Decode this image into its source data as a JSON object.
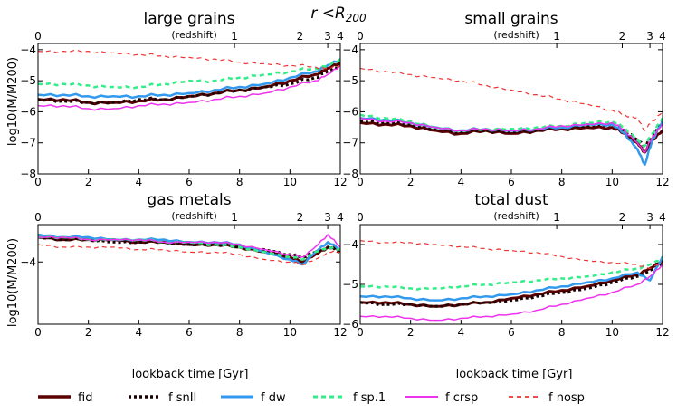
{
  "figure": {
    "title_main": "r <R",
    "title_sub": "200"
  },
  "chart_data": [
    {
      "type": "line",
      "title": "large grains",
      "xlabel": "",
      "ylabel": "log10(M/M200)",
      "xlim": [
        0,
        12
      ],
      "ylim": [
        -8,
        -3.8
      ],
      "xticks": [
        "0",
        "2",
        "4",
        "6",
        "8",
        "10",
        "12"
      ],
      "yticks": [
        "-8",
        "-7",
        "-6",
        "-5",
        "-4"
      ],
      "top_axis_label": "(redshift)",
      "top_ticks": [
        {
          "label": "0",
          "t": 0
        },
        {
          "label": "1",
          "t": 7.8
        },
        {
          "label": "2",
          "t": 10.4
        },
        {
          "label": "3",
          "t": 11.5
        },
        {
          "label": "4",
          "t": 12.0
        }
      ],
      "series": [
        {
          "name": "fid",
          "x": [
            0,
            1,
            2,
            3,
            4,
            5,
            6,
            7,
            8,
            9,
            10,
            11,
            11.5,
            12
          ],
          "y": [
            -5.6,
            -5.6,
            -5.7,
            -5.7,
            -5.65,
            -5.6,
            -5.5,
            -5.4,
            -5.3,
            -5.2,
            -5.0,
            -4.8,
            -4.6,
            -4.4
          ]
        },
        {
          "name": "f snII",
          "x": [
            0,
            1,
            2,
            3,
            4,
            5,
            6,
            7,
            8,
            9,
            10,
            11,
            11.5,
            12
          ],
          "y": [
            -5.6,
            -5.65,
            -5.7,
            -5.7,
            -5.6,
            -5.6,
            -5.5,
            -5.4,
            -5.3,
            -5.2,
            -5.1,
            -4.9,
            -4.7,
            -4.5
          ]
        },
        {
          "name": "f dw",
          "x": [
            0,
            1,
            2,
            3,
            4,
            5,
            6,
            7,
            8,
            9,
            10,
            11,
            11.5,
            12
          ],
          "y": [
            -5.45,
            -5.45,
            -5.5,
            -5.5,
            -5.5,
            -5.45,
            -5.4,
            -5.3,
            -5.2,
            -5.1,
            -4.9,
            -4.7,
            -4.5,
            -4.3
          ]
        },
        {
          "name": "f sp.1",
          "x": [
            0,
            1,
            2,
            3,
            4,
            5,
            6,
            7,
            8,
            9,
            10,
            11,
            11.5,
            12
          ],
          "y": [
            -5.1,
            -5.1,
            -5.15,
            -5.2,
            -5.2,
            -5.1,
            -5.0,
            -5.0,
            -4.9,
            -4.8,
            -4.7,
            -4.6,
            -4.5,
            -4.3
          ]
        },
        {
          "name": "f crsp",
          "x": [
            0,
            1,
            2,
            3,
            4,
            5,
            6,
            7,
            8,
            9,
            10,
            11,
            11.5,
            12
          ],
          "y": [
            -5.8,
            -5.8,
            -5.9,
            -5.9,
            -5.8,
            -5.75,
            -5.7,
            -5.6,
            -5.5,
            -5.4,
            -5.2,
            -5.0,
            -4.8,
            -4.5
          ]
        },
        {
          "name": "f nosp",
          "x": [
            0,
            1,
            2,
            3,
            4,
            5,
            6,
            7,
            8,
            9,
            10,
            11,
            11.5,
            12
          ],
          "y": [
            -4.05,
            -4.05,
            -4.05,
            -4.1,
            -4.15,
            -4.2,
            -4.25,
            -4.3,
            -4.4,
            -4.45,
            -4.5,
            -4.55,
            -4.6,
            -4.5
          ]
        }
      ]
    },
    {
      "type": "line",
      "title": "small grains",
      "xlabel": "",
      "ylabel": "",
      "xlim": [
        0,
        12
      ],
      "ylim": [
        -8,
        -3.8
      ],
      "xticks": [
        "0",
        "2",
        "4",
        "6",
        "8",
        "10",
        "12"
      ],
      "yticks": [
        "-8",
        "-7",
        "-6",
        "-5",
        "-4"
      ],
      "top_axis_label": "(redshift)",
      "top_ticks": [
        {
          "label": "0",
          "t": 0
        },
        {
          "label": "1",
          "t": 7.8
        },
        {
          "label": "2",
          "t": 10.4
        },
        {
          "label": "3",
          "t": 11.5
        },
        {
          "label": "4",
          "t": 12.0
        }
      ],
      "series": [
        {
          "name": "fid",
          "x": [
            0,
            1,
            2,
            3,
            4,
            5,
            6,
            7,
            8,
            9,
            10,
            10.5,
            11,
            11.3,
            11.6,
            12
          ],
          "y": [
            -6.35,
            -6.4,
            -6.45,
            -6.6,
            -6.7,
            -6.6,
            -6.7,
            -6.6,
            -6.55,
            -6.5,
            -6.5,
            -6.7,
            -7.0,
            -7.3,
            -6.9,
            -6.6
          ]
        },
        {
          "name": "f snII",
          "x": [
            0,
            1,
            2,
            3,
            4,
            5,
            6,
            7,
            8,
            9,
            10,
            10.5,
            11,
            11.3,
            11.6,
            12
          ],
          "y": [
            -6.3,
            -6.35,
            -6.4,
            -6.55,
            -6.65,
            -6.6,
            -6.65,
            -6.6,
            -6.5,
            -6.45,
            -6.4,
            -6.6,
            -6.9,
            -7.1,
            -6.8,
            -6.3
          ]
        },
        {
          "name": "f dw",
          "x": [
            0,
            1,
            2,
            3,
            4,
            5,
            6,
            7,
            8,
            9,
            10,
            10.5,
            11,
            11.3,
            11.6,
            12
          ],
          "y": [
            -6.2,
            -6.25,
            -6.35,
            -6.5,
            -6.6,
            -6.55,
            -6.6,
            -6.55,
            -6.5,
            -6.4,
            -6.4,
            -6.7,
            -7.2,
            -7.7,
            -6.9,
            -6.3
          ]
        },
        {
          "name": "f sp.1",
          "x": [
            0,
            1,
            2,
            3,
            4,
            5,
            6,
            7,
            8,
            9,
            10,
            10.5,
            11,
            11.3,
            11.6,
            12
          ],
          "y": [
            -6.1,
            -6.2,
            -6.3,
            -6.5,
            -6.6,
            -6.55,
            -6.55,
            -6.5,
            -6.45,
            -6.35,
            -6.3,
            -6.5,
            -6.9,
            -7.1,
            -6.7,
            -6.2
          ]
        },
        {
          "name": "f crsp",
          "x": [
            0,
            1,
            2,
            3,
            4,
            5,
            6,
            7,
            8,
            9,
            10,
            10.5,
            11,
            11.3,
            11.6,
            12
          ],
          "y": [
            -6.2,
            -6.3,
            -6.35,
            -6.5,
            -6.6,
            -6.55,
            -6.6,
            -6.55,
            -6.45,
            -6.4,
            -6.35,
            -6.6,
            -7.0,
            -7.3,
            -6.8,
            -6.4
          ]
        },
        {
          "name": "f nosp",
          "x": [
            0,
            1,
            2,
            3,
            4,
            5,
            6,
            7,
            8,
            9,
            10,
            10.5,
            11,
            11.3,
            11.6,
            12
          ],
          "y": [
            -4.6,
            -4.7,
            -4.8,
            -4.9,
            -5.0,
            -5.15,
            -5.3,
            -5.45,
            -5.6,
            -5.75,
            -5.95,
            -6.1,
            -6.2,
            -6.6,
            -6.3,
            -6.0
          ]
        }
      ]
    },
    {
      "type": "line",
      "title": "gas metals",
      "xlabel": "",
      "ylabel": "",
      "xlim": [
        0,
        12
      ],
      "ylim": [
        -5.25,
        -3.25
      ],
      "xticks": [
        "0",
        "2",
        "4",
        "6",
        "8",
        "10",
        "12"
      ],
      "yticks": [
        "-4"
      ],
      "top_axis_label": "(redshift)",
      "top_ticks": [
        {
          "label": "0",
          "t": 0
        },
        {
          "label": "1",
          "t": 7.8
        },
        {
          "label": "2",
          "t": 10.4
        },
        {
          "label": "3",
          "t": 11.5
        },
        {
          "label": "4",
          "t": 12.0
        }
      ],
      "series": [
        {
          "name": "fid",
          "x": [
            0,
            1,
            2,
            3,
            4,
            5,
            6,
            7,
            8,
            9,
            10,
            10.5,
            11,
            11.5,
            12
          ],
          "y": [
            -3.5,
            -3.55,
            -3.55,
            -3.55,
            -3.6,
            -3.6,
            -3.65,
            -3.65,
            -3.7,
            -3.8,
            -3.9,
            -4.0,
            -3.85,
            -3.7,
            -3.75
          ]
        },
        {
          "name": "f snII",
          "x": [
            0,
            1,
            2,
            3,
            4,
            5,
            6,
            7,
            8,
            9,
            10,
            10.5,
            11,
            11.5,
            12
          ],
          "y": [
            -3.5,
            -3.55,
            -3.55,
            -3.6,
            -3.6,
            -3.6,
            -3.65,
            -3.65,
            -3.7,
            -3.75,
            -3.85,
            -3.9,
            -3.8,
            -3.7,
            -3.8
          ]
        },
        {
          "name": "f dw",
          "x": [
            0,
            1,
            2,
            3,
            4,
            5,
            6,
            7,
            8,
            9,
            10,
            10.5,
            11,
            11.5,
            12
          ],
          "y": [
            -3.45,
            -3.5,
            -3.5,
            -3.55,
            -3.55,
            -3.55,
            -3.6,
            -3.6,
            -3.65,
            -3.8,
            -3.95,
            -4.05,
            -3.8,
            -3.6,
            -3.75
          ]
        },
        {
          "name": "f sp.1",
          "x": [
            0,
            1,
            2,
            3,
            4,
            5,
            6,
            7,
            8,
            9,
            10,
            10.5,
            11,
            11.5,
            12
          ],
          "y": [
            -3.5,
            -3.5,
            -3.55,
            -3.55,
            -3.55,
            -3.6,
            -3.6,
            -3.65,
            -3.7,
            -3.8,
            -3.9,
            -3.95,
            -3.8,
            -3.7,
            -3.75
          ]
        },
        {
          "name": "f crsp",
          "x": [
            0,
            1,
            2,
            3,
            4,
            5,
            6,
            7,
            8,
            9,
            10,
            10.5,
            11,
            11.5,
            12
          ],
          "y": [
            -3.5,
            -3.5,
            -3.55,
            -3.55,
            -3.55,
            -3.6,
            -3.6,
            -3.6,
            -3.65,
            -3.75,
            -3.85,
            -3.9,
            -3.7,
            -3.45,
            -3.7
          ]
        },
        {
          "name": "f nosp",
          "x": [
            0,
            1,
            2,
            3,
            4,
            5,
            6,
            7,
            8,
            9,
            10,
            10.5,
            11,
            11.5,
            12
          ],
          "y": [
            -3.65,
            -3.7,
            -3.7,
            -3.7,
            -3.75,
            -3.75,
            -3.8,
            -3.8,
            -3.85,
            -3.95,
            -4.0,
            -4.05,
            -3.95,
            -3.8,
            -3.8
          ]
        }
      ]
    },
    {
      "type": "line",
      "title": "total dust",
      "xlabel": "",
      "ylabel": "",
      "xlim": [
        0,
        12
      ],
      "ylim": [
        -6,
        -3.5
      ],
      "xticks": [
        "0",
        "2",
        "4",
        "6",
        "8",
        "10",
        "12"
      ],
      "yticks": [
        "-6",
        "-5",
        "-4"
      ],
      "top_axis_label": "(redshift)",
      "top_ticks": [
        {
          "label": "0",
          "t": 0
        },
        {
          "label": "1",
          "t": 7.8
        },
        {
          "label": "2",
          "t": 10.4
        },
        {
          "label": "3",
          "t": 11.5
        },
        {
          "label": "4",
          "t": 12.0
        }
      ],
      "series": [
        {
          "name": "fid",
          "x": [
            0,
            1,
            2,
            3,
            4,
            5,
            6,
            7,
            8,
            9,
            10,
            11,
            11.5,
            12
          ],
          "y": [
            -5.45,
            -5.45,
            -5.5,
            -5.55,
            -5.5,
            -5.45,
            -5.35,
            -5.25,
            -5.15,
            -5.05,
            -4.9,
            -4.75,
            -4.6,
            -4.4
          ]
        },
        {
          "name": "f snII",
          "x": [
            0,
            1,
            2,
            3,
            4,
            5,
            6,
            7,
            8,
            9,
            10,
            11,
            11.5,
            12
          ],
          "y": [
            -5.45,
            -5.5,
            -5.5,
            -5.55,
            -5.5,
            -5.45,
            -5.4,
            -5.3,
            -5.2,
            -5.1,
            -4.95,
            -4.8,
            -4.65,
            -4.45
          ]
        },
        {
          "name": "f dw",
          "x": [
            0,
            1,
            2,
            3,
            4,
            5,
            6,
            7,
            8,
            9,
            10,
            11,
            11.5,
            12
          ],
          "y": [
            -5.3,
            -5.3,
            -5.35,
            -5.4,
            -5.35,
            -5.3,
            -5.25,
            -5.15,
            -5.05,
            -4.95,
            -4.85,
            -4.7,
            -4.9,
            -4.3
          ]
        },
        {
          "name": "f sp.1",
          "x": [
            0,
            1,
            2,
            3,
            4,
            5,
            6,
            7,
            8,
            9,
            10,
            11,
            11.5,
            12
          ],
          "y": [
            -5.05,
            -5.05,
            -5.1,
            -5.1,
            -5.05,
            -5.0,
            -4.95,
            -4.9,
            -4.85,
            -4.8,
            -4.7,
            -4.6,
            -4.5,
            -4.35
          ]
        },
        {
          "name": "f crsp",
          "x": [
            0,
            1,
            2,
            3,
            4,
            5,
            6,
            7,
            8,
            9,
            10,
            11,
            11.5,
            12
          ],
          "y": [
            -5.8,
            -5.8,
            -5.85,
            -5.9,
            -5.85,
            -5.8,
            -5.75,
            -5.65,
            -5.5,
            -5.35,
            -5.2,
            -5.0,
            -4.8,
            -4.5
          ]
        },
        {
          "name": "f nosp",
          "x": [
            0,
            1,
            2,
            3,
            4,
            5,
            6,
            7,
            8,
            9,
            10,
            11,
            11.5,
            12
          ],
          "y": [
            -3.9,
            -3.95,
            -3.95,
            -4.0,
            -4.05,
            -4.1,
            -4.15,
            -4.2,
            -4.3,
            -4.4,
            -4.45,
            -4.5,
            -4.6,
            -4.45
          ]
        }
      ]
    }
  ],
  "shared": {
    "ylabel_top": "log10(M/M200)",
    "ylabel_bottom": "log10(M/M200)",
    "xlabel_left": "lookback time  [Gyr]",
    "xlabel_right": "lookback time  [Gyr]"
  },
  "series_styles": [
    {
      "name": "fid",
      "color": "#5a0000",
      "dash": "",
      "width": 3
    },
    {
      "name": "f snII",
      "color": "#1a0000",
      "dash": "3,3",
      "width": 3
    },
    {
      "name": "f dw",
      "color": "#3399ee",
      "dash": "",
      "width": 2.5
    },
    {
      "name": "f sp.1",
      "color": "#33ee88",
      "dash": "5,4",
      "width": 2.5
    },
    {
      "name": "f crsp",
      "color": "#ee33ee",
      "dash": "",
      "width": 1.5
    },
    {
      "name": "f nosp",
      "color": "#ee3333",
      "dash": "5,4",
      "width": 1.2
    }
  ],
  "legend": {
    "placement": "bottom",
    "items": [
      "fid",
      "f snII",
      "f dw",
      "f sp.1",
      "f crsp",
      "f nosp"
    ]
  }
}
